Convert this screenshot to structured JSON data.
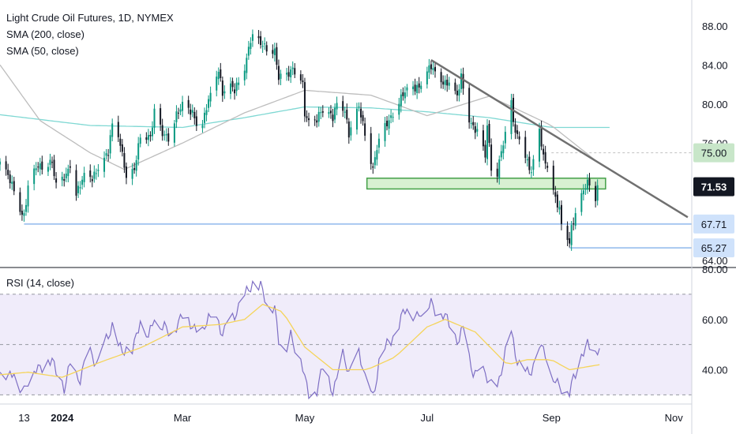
{
  "legend": {
    "title": "Light Crude Oil Futures, 1D, NYMEX",
    "sma200": "SMA (200, close)",
    "sma50": "SMA (50, close)",
    "rsi": "RSI (14, close)"
  },
  "colors": {
    "up": "#089981",
    "down": "#131722",
    "sma200": "#7fd8d3",
    "sma50": "#bdbdbd",
    "rsi_line": "#7e6fc4",
    "rsi_ma": "#f5d45a",
    "rsi_band": "#f0ecfa",
    "support_zone_fill": "#d8f0d2",
    "support_zone_stroke": "#43a047",
    "trendline": "#707070",
    "horizontal_support": "#a8c8f0",
    "price_label_green": "#c8e6c9",
    "price_label_blue": "#cfe2fb",
    "price_label_current": "#131722"
  },
  "chart_data": [
    {
      "type": "candlestick",
      "title": "Light Crude Oil Futures, 1D, NYMEX",
      "x_range": [
        "2023-12-01",
        "2024-11-10"
      ],
      "ylim": [
        63.5,
        90.0
      ],
      "yticks": [
        88.0,
        84.0,
        80.0,
        76.0,
        64.0
      ],
      "ytick_labels": [
        "88.00",
        "84.00",
        "80.00",
        "76.00",
        "64.00"
      ],
      "xticks": [
        {
          "date": "2023-12-13",
          "label": "13"
        },
        {
          "date": "2024-01-01",
          "label": "2024"
        },
        {
          "date": "2024-03-01",
          "label": "Mar"
        },
        {
          "date": "2024-05-01",
          "label": "May"
        },
        {
          "date": "2024-07-01",
          "label": "Jul"
        },
        {
          "date": "2024-09-01",
          "label": "Sep"
        },
        {
          "date": "2024-11-01",
          "label": "Nov"
        }
      ],
      "grid": false,
      "price_anchors": [
        [
          "2023-12-01",
          74.1
        ],
        [
          "2023-12-04",
          73.1
        ],
        [
          "2023-12-06",
          72.2
        ],
        [
          "2023-12-08",
          71.2
        ],
        [
          "2023-12-12",
          68.6
        ],
        [
          "2023-12-13",
          68.6
        ],
        [
          "2023-12-15",
          71.4
        ],
        [
          "2023-12-19",
          73.6
        ],
        [
          "2023-12-22",
          73.6
        ],
        [
          "2023-12-27",
          74.1
        ],
        [
          "2023-12-29",
          71.6
        ],
        [
          "2024-01-03",
          72.7
        ],
        [
          "2024-01-05",
          73.8
        ],
        [
          "2024-01-08",
          70.8
        ],
        [
          "2024-01-12",
          72.7
        ],
        [
          "2024-01-16",
          72.4
        ],
        [
          "2024-01-19",
          73.4
        ],
        [
          "2024-01-24",
          75.1
        ],
        [
          "2024-01-26",
          78.0
        ],
        [
          "2024-01-29",
          76.8
        ],
        [
          "2024-02-01",
          73.8
        ],
        [
          "2024-02-02",
          72.3
        ],
        [
          "2024-02-06",
          73.3
        ],
        [
          "2024-02-09",
          76.8
        ],
        [
          "2024-02-14",
          76.6
        ],
        [
          "2024-02-16",
          79.2
        ],
        [
          "2024-02-20",
          77.0
        ],
        [
          "2024-02-23",
          76.5
        ],
        [
          "2024-02-27",
          78.9
        ],
        [
          "2024-03-01",
          79.9
        ],
        [
          "2024-03-06",
          79.1
        ],
        [
          "2024-03-08",
          78.0
        ],
        [
          "2024-03-11",
          77.9
        ],
        [
          "2024-03-13",
          79.7
        ],
        [
          "2024-03-15",
          81.0
        ],
        [
          "2024-03-19",
          83.5
        ],
        [
          "2024-03-21",
          81.1
        ],
        [
          "2024-03-25",
          81.9
        ],
        [
          "2024-03-27",
          81.4
        ],
        [
          "2024-04-01",
          83.7
        ],
        [
          "2024-04-04",
          86.6
        ],
        [
          "2024-04-05",
          86.9
        ],
        [
          "2024-04-08",
          86.4
        ],
        [
          "2024-04-12",
          85.7
        ],
        [
          "2024-04-16",
          85.4
        ],
        [
          "2024-04-18",
          82.7
        ],
        [
          "2024-04-22",
          82.9
        ],
        [
          "2024-04-25",
          83.6
        ],
        [
          "2024-04-29",
          82.6
        ],
        [
          "2024-04-30",
          81.9
        ],
        [
          "2024-05-01",
          79.0
        ],
        [
          "2024-05-03",
          78.1
        ],
        [
          "2024-05-07",
          78.4
        ],
        [
          "2024-05-09",
          79.3
        ],
        [
          "2024-05-13",
          79.1
        ],
        [
          "2024-05-15",
          78.6
        ],
        [
          "2024-05-17",
          80.1
        ],
        [
          "2024-05-21",
          79.3
        ],
        [
          "2024-05-23",
          76.9
        ],
        [
          "2024-05-28",
          79.8
        ],
        [
          "2024-05-30",
          77.9
        ],
        [
          "2024-05-31",
          77.0
        ],
        [
          "2024-06-03",
          74.2
        ],
        [
          "2024-06-04",
          73.3
        ],
        [
          "2024-06-06",
          75.6
        ],
        [
          "2024-06-10",
          77.7
        ],
        [
          "2024-06-13",
          78.6
        ],
        [
          "2024-06-17",
          80.3
        ],
        [
          "2024-06-20",
          81.3
        ],
        [
          "2024-06-24",
          81.6
        ],
        [
          "2024-06-27",
          81.7
        ],
        [
          "2024-07-01",
          83.4
        ],
        [
          "2024-07-03",
          83.9
        ],
        [
          "2024-07-05",
          83.2
        ],
        [
          "2024-07-08",
          82.3
        ],
        [
          "2024-07-10",
          82.1
        ],
        [
          "2024-07-12",
          82.2
        ],
        [
          "2024-07-16",
          80.8
        ],
        [
          "2024-07-18",
          82.8
        ],
        [
          "2024-07-22",
          78.4
        ],
        [
          "2024-07-24",
          77.6
        ],
        [
          "2024-07-26",
          77.2
        ],
        [
          "2024-07-30",
          74.7
        ],
        [
          "2024-07-31",
          77.9
        ],
        [
          "2024-08-02",
          73.5
        ],
        [
          "2024-08-05",
          72.9
        ],
        [
          "2024-08-07",
          75.2
        ],
        [
          "2024-08-09",
          76.8
        ],
        [
          "2024-08-12",
          80.1
        ],
        [
          "2024-08-14",
          76.9
        ],
        [
          "2024-08-16",
          76.7
        ],
        [
          "2024-08-20",
          74.0
        ],
        [
          "2024-08-22",
          73.0
        ],
        [
          "2024-08-26",
          77.4
        ],
        [
          "2024-08-28",
          74.5
        ],
        [
          "2024-08-30",
          73.6
        ],
        [
          "2024-09-03",
          70.3
        ],
        [
          "2024-09-05",
          69.2
        ],
        [
          "2024-09-06",
          67.7
        ],
        [
          "2024-09-10",
          65.8
        ],
        [
          "2024-09-11",
          67.3
        ],
        [
          "2024-09-13",
          68.7
        ],
        [
          "2024-09-17",
          71.2
        ],
        [
          "2024-09-19",
          71.9
        ],
        [
          "2024-09-20",
          71.9
        ],
        [
          "2024-09-23",
          70.4
        ],
        [
          "2024-09-24",
          71.5
        ]
      ],
      "sma200": [
        [
          "2023-12-01",
          78.9
        ],
        [
          "2024-01-15",
          77.8
        ],
        [
          "2024-03-01",
          77.6
        ],
        [
          "2024-04-01",
          78.6
        ],
        [
          "2024-05-01",
          79.7
        ],
        [
          "2024-06-03",
          79.6
        ],
        [
          "2024-07-01",
          79.2
        ],
        [
          "2024-08-01",
          78.6
        ],
        [
          "2024-09-01",
          77.6
        ],
        [
          "2024-09-30",
          77.6
        ]
      ],
      "sma50": [
        [
          "2023-12-01",
          84.0
        ],
        [
          "2023-12-21",
          78.3
        ],
        [
          "2024-01-15",
          75.0
        ],
        [
          "2024-02-01",
          73.3
        ],
        [
          "2024-03-01",
          76.0
        ],
        [
          "2024-04-01",
          79.1
        ],
        [
          "2024-05-01",
          81.4
        ],
        [
          "2024-06-03",
          80.9
        ],
        [
          "2024-07-01",
          78.8
        ],
        [
          "2024-08-01",
          80.8
        ],
        [
          "2024-09-01",
          77.8
        ],
        [
          "2024-09-25",
          73.9
        ]
      ],
      "annotations": {
        "support_zone": {
          "from": "2024-06-01",
          "to": "2024-09-28",
          "low": 71.3,
          "high": 72.4
        },
        "trendline": {
          "from": [
            "2024-07-03",
            84.5
          ],
          "to": [
            "2024-11-08",
            68.4
          ]
        },
        "horizontal_lines": [
          {
            "value": 67.71,
            "from": "2023-12-13",
            "label": "67.71"
          },
          {
            "value": 65.27,
            "from": "2024-09-10",
            "label": "65.27"
          }
        ],
        "dashed_level": {
          "value": 75.0,
          "from": "2024-09-01"
        },
        "price_labels": [
          {
            "value": 75.0,
            "label": "75.00",
            "style": "green"
          },
          {
            "value": 71.53,
            "label": "71.53",
            "style": "current"
          },
          {
            "value": 67.71,
            "label": "67.71",
            "style": "blue"
          },
          {
            "value": 65.27,
            "label": "65.27",
            "style": "blue"
          }
        ]
      }
    },
    {
      "type": "line",
      "title": "RSI (14, close)",
      "ylim": [
        27,
        80
      ],
      "yticks": [
        80.0,
        60.0,
        40.0
      ],
      "ytick_labels": [
        "80.00",
        "60.00",
        "40.00"
      ],
      "band": [
        30,
        70
      ],
      "midline": 50,
      "rsi_anchors": [
        [
          "2023-12-01",
          39
        ],
        [
          "2023-12-05",
          36
        ],
        [
          "2023-12-08",
          41
        ],
        [
          "2023-12-11",
          33
        ],
        [
          "2023-12-13",
          30
        ],
        [
          "2023-12-18",
          42
        ],
        [
          "2023-12-22",
          40
        ],
        [
          "2023-12-27",
          45
        ],
        [
          "2024-01-02",
          31
        ],
        [
          "2024-01-05",
          42
        ],
        [
          "2024-01-10",
          36
        ],
        [
          "2024-01-15",
          47
        ],
        [
          "2024-01-19",
          43
        ],
        [
          "2024-01-24",
          53
        ],
        [
          "2024-01-26",
          58
        ],
        [
          "2024-01-31",
          46
        ],
        [
          "2024-02-05",
          49
        ],
        [
          "2024-02-09",
          60
        ],
        [
          "2024-02-13",
          52
        ],
        [
          "2024-02-16",
          63
        ],
        [
          "2024-02-20",
          56
        ],
        [
          "2024-02-23",
          55
        ],
        [
          "2024-02-28",
          59
        ],
        [
          "2024-03-01",
          61
        ],
        [
          "2024-03-06",
          58
        ],
        [
          "2024-03-11",
          54
        ],
        [
          "2024-03-14",
          60
        ],
        [
          "2024-03-19",
          60
        ],
        [
          "2024-03-21",
          52
        ],
        [
          "2024-03-26",
          62
        ],
        [
          "2024-04-01",
          68
        ],
        [
          "2024-04-05",
          75
        ],
        [
          "2024-04-09",
          73
        ],
        [
          "2024-04-12",
          65
        ],
        [
          "2024-04-16",
          66
        ],
        [
          "2024-04-18",
          52
        ],
        [
          "2024-04-22",
          48
        ],
        [
          "2024-04-24",
          54
        ],
        [
          "2024-04-29",
          45
        ],
        [
          "2024-05-01",
          35
        ],
        [
          "2024-05-03",
          30
        ],
        [
          "2024-05-07",
          33
        ],
        [
          "2024-05-10",
          40
        ],
        [
          "2024-05-15",
          32
        ],
        [
          "2024-05-20",
          45
        ],
        [
          "2024-05-23",
          38
        ],
        [
          "2024-05-28",
          48
        ],
        [
          "2024-05-31",
          35
        ],
        [
          "2024-06-04",
          30
        ],
        [
          "2024-06-07",
          43
        ],
        [
          "2024-06-11",
          49
        ],
        [
          "2024-06-14",
          54
        ],
        [
          "2024-06-18",
          60
        ],
        [
          "2024-06-21",
          64
        ],
        [
          "2024-06-26",
          62
        ],
        [
          "2024-07-01",
          64
        ],
        [
          "2024-07-03",
          67
        ],
        [
          "2024-07-08",
          62
        ],
        [
          "2024-07-12",
          58
        ],
        [
          "2024-07-17",
          52
        ],
        [
          "2024-07-19",
          56
        ],
        [
          "2024-07-22",
          44
        ],
        [
          "2024-07-24",
          40
        ],
        [
          "2024-07-29",
          38
        ],
        [
          "2024-08-01",
          35
        ],
        [
          "2024-08-05",
          33
        ],
        [
          "2024-08-08",
          42
        ],
        [
          "2024-08-12",
          56
        ],
        [
          "2024-08-14",
          47
        ],
        [
          "2024-08-16",
          43
        ],
        [
          "2024-08-21",
          37
        ],
        [
          "2024-08-23",
          44
        ],
        [
          "2024-08-26",
          51
        ],
        [
          "2024-08-28",
          46
        ],
        [
          "2024-09-03",
          37
        ],
        [
          "2024-09-06",
          32
        ],
        [
          "2024-09-10",
          31
        ],
        [
          "2024-09-12",
          38
        ],
        [
          "2024-09-16",
          45
        ],
        [
          "2024-09-19",
          49
        ],
        [
          "2024-09-23",
          47
        ],
        [
          "2024-09-25",
          50
        ]
      ],
      "rsi_ma_anchors": [
        [
          "2023-12-01",
          38
        ],
        [
          "2023-12-15",
          39
        ],
        [
          "2024-01-01",
          37
        ],
        [
          "2024-01-20",
          43
        ],
        [
          "2024-02-10",
          49
        ],
        [
          "2024-03-01",
          57
        ],
        [
          "2024-03-20",
          58
        ],
        [
          "2024-04-01",
          60
        ],
        [
          "2024-04-10",
          66
        ],
        [
          "2024-04-20",
          63
        ],
        [
          "2024-05-01",
          49
        ],
        [
          "2024-05-15",
          40
        ],
        [
          "2024-06-01",
          40
        ],
        [
          "2024-06-15",
          45
        ],
        [
          "2024-07-01",
          57
        ],
        [
          "2024-07-10",
          60
        ],
        [
          "2024-07-25",
          55
        ],
        [
          "2024-08-10",
          42
        ],
        [
          "2024-08-20",
          44
        ],
        [
          "2024-09-01",
          44
        ],
        [
          "2024-09-10",
          40
        ],
        [
          "2024-09-25",
          42
        ]
      ]
    }
  ]
}
